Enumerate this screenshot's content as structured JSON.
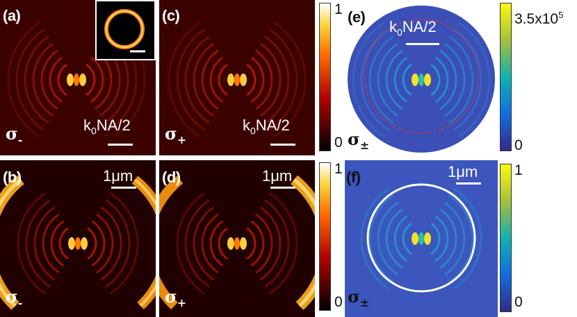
{
  "panels": [
    {
      "id": "a",
      "label": "(a)",
      "sigma": "σ",
      "sigma_sub": "-",
      "scale": {
        "k": "k",
        "sub": "0",
        "rest": "NA/2"
      }
    },
    {
      "id": "b",
      "label": "(b)",
      "sigma": "σ",
      "sigma_sub": "-",
      "scale_text": "1μm"
    },
    {
      "id": "c",
      "label": "(c)",
      "sigma": "σ",
      "sigma_sub": "+",
      "scale": {
        "k": "k",
        "sub": "0",
        "rest": "NA/2"
      }
    },
    {
      "id": "d",
      "label": "(d)",
      "sigma": "σ",
      "sigma_sub": "+",
      "scale_text": "1μm"
    },
    {
      "id": "e",
      "label": "(e)",
      "sigma": "σ",
      "sigma_sub": "±",
      "scale": {
        "k": "k",
        "sub": "0",
        "rest": "NA/2"
      }
    },
    {
      "id": "f",
      "label": "(f)",
      "sigma": "σ",
      "sigma_sub": "±",
      "scale_text": "1μm"
    }
  ],
  "colorbars": {
    "hot_top": {
      "max": "1",
      "min": "0"
    },
    "hot_bottom": {
      "max": "1",
      "min": "0"
    },
    "parula_top": {
      "max_base": "3.5x10",
      "max_exp": "5",
      "min": "0"
    },
    "parula_bottom": {
      "max": "1",
      "min": "0"
    }
  },
  "colors": {
    "hot_background": "#3a0000",
    "parula_background": "#3a4fb8",
    "ring_outline": "#ffffff",
    "dashed_circle": "#e0303a"
  }
}
